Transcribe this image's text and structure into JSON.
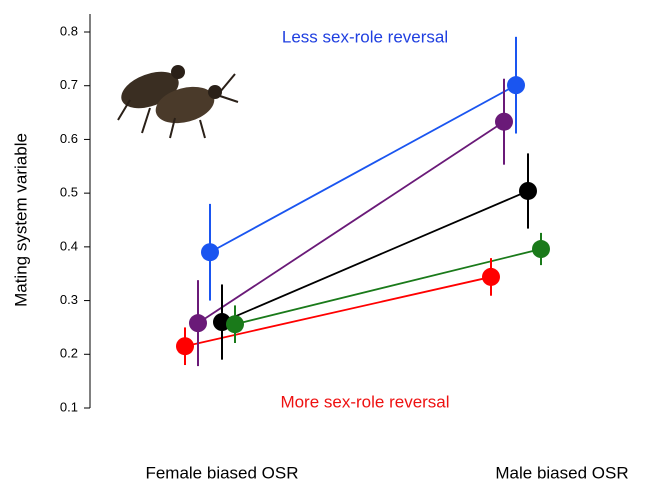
{
  "chart_data": {
    "type": "dot-line",
    "ylabel": "Mating system variable",
    "categories": [
      "Female biased OSR",
      "Male biased OSR"
    ],
    "ylim": [
      0.1,
      0.8
    ],
    "yticks": [
      0.1,
      0.2,
      0.3,
      0.4,
      0.5,
      0.6,
      0.7,
      0.8
    ],
    "annotations": [
      {
        "text": "Less sex-role reversal",
        "color": "#1f3fe0"
      },
      {
        "text": "More sex-role reversal",
        "color": "#ee1111"
      }
    ],
    "series": [
      {
        "color": "#ff0000",
        "values": [
          0.215,
          0.344
        ],
        "errors": [
          0.035,
          0.035
        ]
      },
      {
        "color": "#6a1a78",
        "values": [
          0.258,
          0.633
        ],
        "errors": [
          0.08,
          0.08
        ]
      },
      {
        "color": "#1a55f0",
        "values": [
          0.39,
          0.701
        ],
        "errors": [
          0.09,
          0.09
        ]
      },
      {
        "color": "#000000",
        "values": [
          0.26,
          0.504
        ],
        "errors": [
          0.07,
          0.07
        ]
      },
      {
        "color": "#1a7a1a",
        "values": [
          0.256,
          0.396
        ],
        "errors": [
          0.035,
          0.03
        ]
      }
    ]
  }
}
